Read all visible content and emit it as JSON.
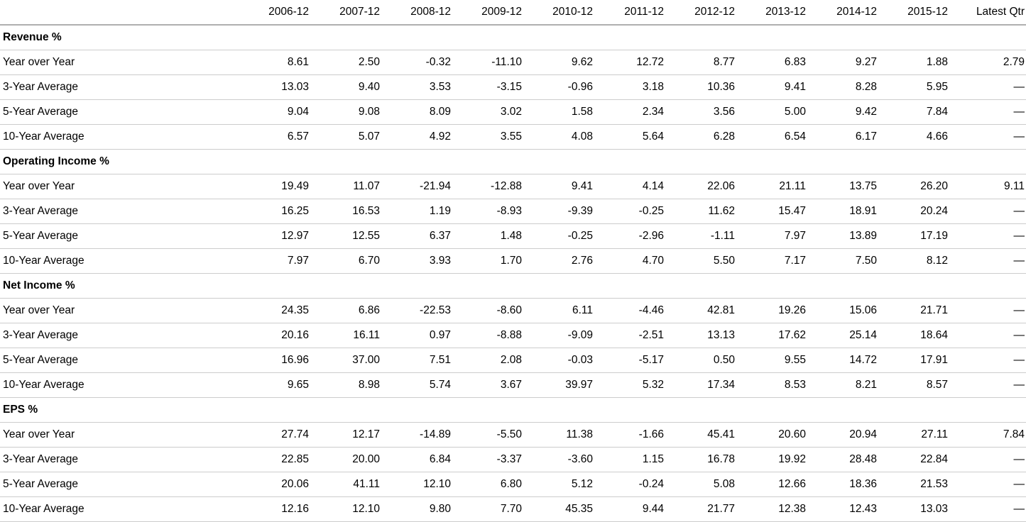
{
  "page": {
    "background_color": "#ffffff",
    "text_color": "#000000",
    "row_border_color": "#cccccc",
    "header_border_color": "#b0b0b0"
  },
  "table": {
    "corner_label": "",
    "missing_value": "—",
    "columns": [
      "2006-12",
      "2007-12",
      "2008-12",
      "2009-12",
      "2010-12",
      "2011-12",
      "2012-12",
      "2013-12",
      "2014-12",
      "2015-12",
      "Latest Qtr"
    ],
    "sections": [
      {
        "title": "Revenue %",
        "rows": [
          {
            "label": "Year over Year",
            "values": [
              "8.61",
              "2.50",
              "-0.32",
              "-11.10",
              "9.62",
              "12.72",
              "8.77",
              "6.83",
              "9.27",
              "1.88",
              "2.79"
            ]
          },
          {
            "label": "3-Year Average",
            "values": [
              "13.03",
              "9.40",
              "3.53",
              "-3.15",
              "-0.96",
              "3.18",
              "10.36",
              "9.41",
              "8.28",
              "5.95",
              "—"
            ]
          },
          {
            "label": "5-Year Average",
            "values": [
              "9.04",
              "9.08",
              "8.09",
              "3.02",
              "1.58",
              "2.34",
              "3.56",
              "5.00",
              "9.42",
              "7.84",
              "—"
            ]
          },
          {
            "label": "10-Year Average",
            "values": [
              "6.57",
              "5.07",
              "4.92",
              "3.55",
              "4.08",
              "5.64",
              "6.28",
              "6.54",
              "6.17",
              "4.66",
              "—"
            ]
          }
        ]
      },
      {
        "title": "Operating Income %",
        "rows": [
          {
            "label": "Year over Year",
            "values": [
              "19.49",
              "11.07",
              "-21.94",
              "-12.88",
              "9.41",
              "4.14",
              "22.06",
              "21.11",
              "13.75",
              "26.20",
              "9.11"
            ]
          },
          {
            "label": "3-Year Average",
            "values": [
              "16.25",
              "16.53",
              "1.19",
              "-8.93",
              "-9.39",
              "-0.25",
              "11.62",
              "15.47",
              "18.91",
              "20.24",
              "—"
            ]
          },
          {
            "label": "5-Year Average",
            "values": [
              "12.97",
              "12.55",
              "6.37",
              "1.48",
              "-0.25",
              "-2.96",
              "-1.11",
              "7.97",
              "13.89",
              "17.19",
              "—"
            ]
          },
          {
            "label": "10-Year Average",
            "values": [
              "7.97",
              "6.70",
              "3.93",
              "1.70",
              "2.76",
              "4.70",
              "5.50",
              "7.17",
              "7.50",
              "8.12",
              "—"
            ]
          }
        ]
      },
      {
        "title": "Net Income %",
        "rows": [
          {
            "label": "Year over Year",
            "values": [
              "24.35",
              "6.86",
              "-22.53",
              "-8.60",
              "6.11",
              "-4.46",
              "42.81",
              "19.26",
              "15.06",
              "21.71",
              "—"
            ]
          },
          {
            "label": "3-Year Average",
            "values": [
              "20.16",
              "16.11",
              "0.97",
              "-8.88",
              "-9.09",
              "-2.51",
              "13.13",
              "17.62",
              "25.14",
              "18.64",
              "—"
            ]
          },
          {
            "label": "5-Year Average",
            "values": [
              "16.96",
              "37.00",
              "7.51",
              "2.08",
              "-0.03",
              "-5.17",
              "0.50",
              "9.55",
              "14.72",
              "17.91",
              "—"
            ]
          },
          {
            "label": "10-Year Average",
            "values": [
              "9.65",
              "8.98",
              "5.74",
              "3.67",
              "39.97",
              "5.32",
              "17.34",
              "8.53",
              "8.21",
              "8.57",
              "—"
            ]
          }
        ]
      },
      {
        "title": "EPS %",
        "rows": [
          {
            "label": "Year over Year",
            "values": [
              "27.74",
              "12.17",
              "-14.89",
              "-5.50",
              "11.38",
              "-1.66",
              "45.41",
              "20.60",
              "20.94",
              "27.11",
              "7.84"
            ]
          },
          {
            "label": "3-Year Average",
            "values": [
              "22.85",
              "20.00",
              "6.84",
              "-3.37",
              "-3.60",
              "1.15",
              "16.78",
              "19.92",
              "28.48",
              "22.84",
              "—"
            ]
          },
          {
            "label": "5-Year Average",
            "values": [
              "20.06",
              "41.11",
              "12.10",
              "6.80",
              "5.12",
              "-0.24",
              "5.08",
              "12.66",
              "18.36",
              "21.53",
              "—"
            ]
          },
          {
            "label": "10-Year Average",
            "values": [
              "12.16",
              "12.10",
              "9.80",
              "7.70",
              "45.35",
              "9.44",
              "21.77",
              "12.38",
              "12.43",
              "13.03",
              "—"
            ]
          }
        ]
      }
    ]
  }
}
